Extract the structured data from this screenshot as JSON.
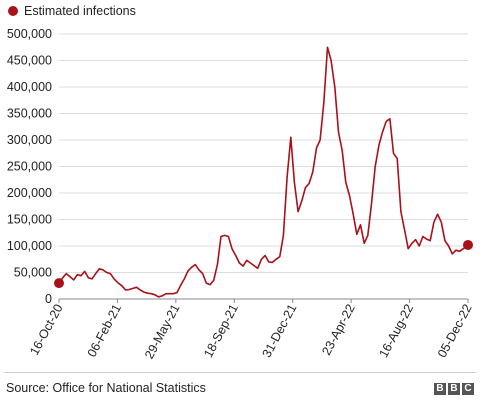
{
  "legend": {
    "label": "Estimated infections",
    "color": "#a8111a"
  },
  "source": "Source: Office for National Statistics",
  "logo": [
    "B",
    "B",
    "C"
  ],
  "chart_data": {
    "type": "line",
    "title": "",
    "xlabel": "",
    "ylabel": "",
    "ylim": [
      0,
      500000
    ],
    "grid": true,
    "legend_position": "top-left",
    "y_ticks": [
      "0",
      "50,000",
      "100,000",
      "150,000",
      "200,000",
      "250,000",
      "300,000",
      "350,000",
      "400,000",
      "450,000",
      "500,000"
    ],
    "x_ticks": [
      "16-Oct-20",
      "06-Feb-21",
      "29-May-21",
      "18-Sep-21",
      "31-Dec-21",
      "23-Apr-22",
      "16-Aug-22",
      "05-Dec-22"
    ],
    "x_start": "2020-10-16",
    "x_end": "2022-12-05",
    "series": [
      {
        "name": "Estimated infections",
        "color": "#a8111a",
        "x": [
          "2020-10-16",
          "2020-10-23",
          "2020-10-30",
          "2020-11-06",
          "2020-11-13",
          "2020-11-20",
          "2020-11-27",
          "2020-12-04",
          "2020-12-11",
          "2020-12-18",
          "2020-12-25",
          "2021-01-01",
          "2021-01-08",
          "2021-01-15",
          "2021-01-22",
          "2021-01-29",
          "2021-02-06",
          "2021-02-13",
          "2021-02-20",
          "2021-02-27",
          "2021-03-06",
          "2021-03-13",
          "2021-03-20",
          "2021-03-27",
          "2021-04-03",
          "2021-04-10",
          "2021-04-17",
          "2021-04-24",
          "2021-05-01",
          "2021-05-08",
          "2021-05-15",
          "2021-05-22",
          "2021-05-29",
          "2021-06-05",
          "2021-06-12",
          "2021-06-19",
          "2021-06-26",
          "2021-07-03",
          "2021-07-10",
          "2021-07-17",
          "2021-07-24",
          "2021-07-31",
          "2021-08-07",
          "2021-08-14",
          "2021-08-21",
          "2021-08-28",
          "2021-09-04",
          "2021-09-11",
          "2021-09-18",
          "2021-09-25",
          "2021-10-02",
          "2021-10-09",
          "2021-10-16",
          "2021-10-23",
          "2021-10-30",
          "2021-11-06",
          "2021-11-13",
          "2021-11-20",
          "2021-11-27",
          "2021-12-04",
          "2021-12-11",
          "2021-12-18",
          "2021-12-25",
          "2022-01-01",
          "2022-01-08",
          "2022-01-15",
          "2022-01-22",
          "2022-01-29",
          "2022-02-05",
          "2022-02-12",
          "2022-02-19",
          "2022-02-26",
          "2022-03-05",
          "2022-03-12",
          "2022-03-19",
          "2022-03-26",
          "2022-04-02",
          "2022-04-09",
          "2022-04-16",
          "2022-04-23",
          "2022-04-30",
          "2022-05-07",
          "2022-05-14",
          "2022-05-21",
          "2022-05-28",
          "2022-06-04",
          "2022-06-11",
          "2022-06-18",
          "2022-06-25",
          "2022-07-02",
          "2022-07-09",
          "2022-07-16",
          "2022-07-23",
          "2022-07-30",
          "2022-08-06",
          "2022-08-13",
          "2022-08-20",
          "2022-08-27",
          "2022-09-03",
          "2022-09-10",
          "2022-09-17",
          "2022-09-24",
          "2022-10-01",
          "2022-10-08",
          "2022-10-15",
          "2022-10-22",
          "2022-10-29",
          "2022-11-05",
          "2022-11-12",
          "2022-11-19",
          "2022-11-26",
          "2022-12-05"
        ],
        "y": [
          30000,
          40000,
          48000,
          42000,
          36000,
          46000,
          44000,
          52000,
          40000,
          38000,
          48000,
          57000,
          55000,
          50000,
          48000,
          38000,
          30000,
          25000,
          17000,
          18000,
          20000,
          22000,
          17000,
          13000,
          11000,
          10000,
          8000,
          4000,
          6000,
          10000,
          10000,
          10000,
          12000,
          26000,
          38000,
          53000,
          60000,
          65000,
          55000,
          48000,
          30000,
          27000,
          35000,
          65000,
          118000,
          120000,
          118000,
          95000,
          82000,
          68000,
          62000,
          73000,
          68000,
          63000,
          58000,
          75000,
          82000,
          70000,
          69000,
          75000,
          80000,
          120000,
          230000,
          305000,
          220000,
          165000,
          185000,
          210000,
          218000,
          240000,
          285000,
          300000,
          370000,
          475000,
          450000,
          400000,
          315000,
          280000,
          220000,
          195000,
          160000,
          122000,
          140000,
          105000,
          120000,
          180000,
          250000,
          290000,
          315000,
          335000,
          340000,
          275000,
          265000,
          165000,
          130000,
          95000,
          105000,
          112000,
          100000,
          118000,
          113000,
          110000,
          145000,
          160000,
          145000,
          110000,
          100000,
          85000,
          92000,
          90000,
          95000,
          102000
        ]
      }
    ]
  }
}
